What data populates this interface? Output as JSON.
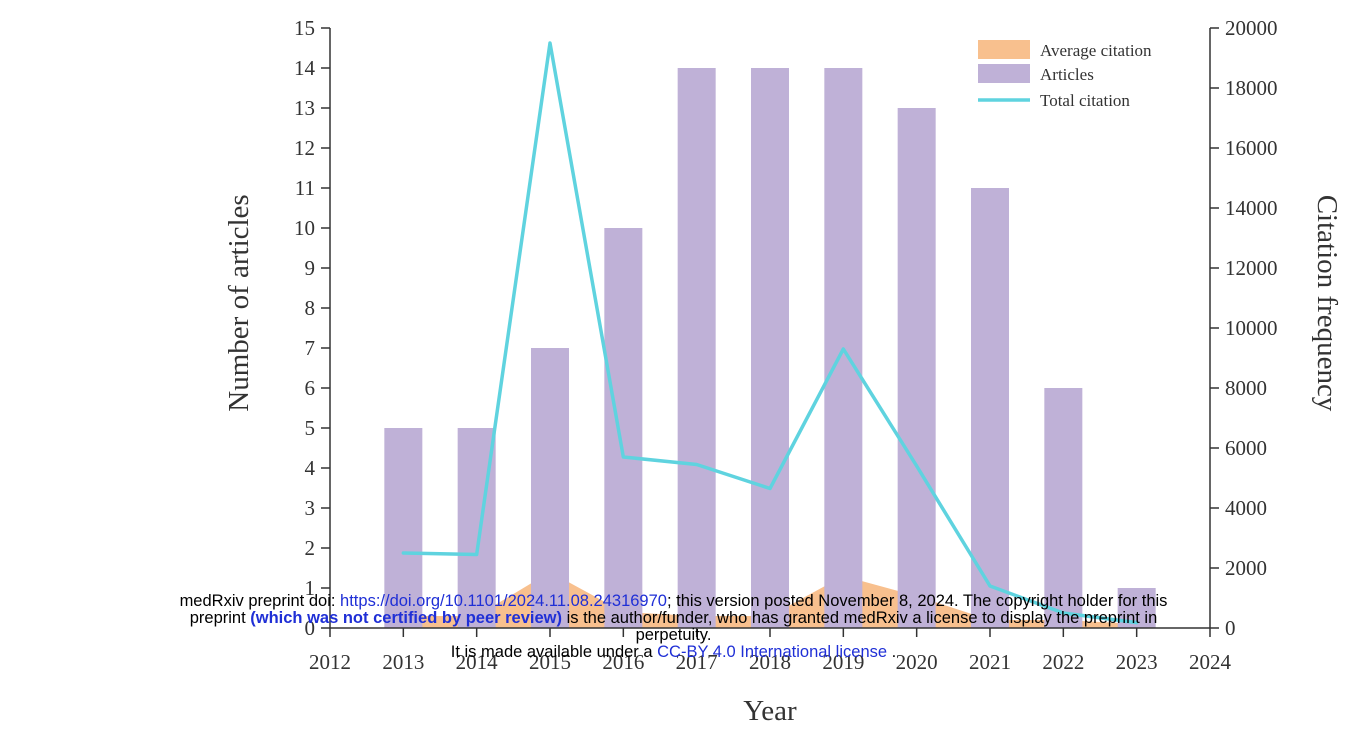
{
  "chart_data": {
    "type": "bar",
    "xlabel": "Year",
    "ylabel": "Number of articles",
    "y2label": "Citation frequency",
    "x_ticks": [
      "2012",
      "2013",
      "2014",
      "2015",
      "2016",
      "2017",
      "2018",
      "2019",
      "2020",
      "2021",
      "2022",
      "2023",
      "2024"
    ],
    "x": [
      2013,
      2014,
      2015,
      2016,
      2017,
      2018,
      2019,
      2020,
      2021,
      2022,
      2023
    ],
    "xlim": [
      2012,
      2024
    ],
    "ylim": [
      0,
      15
    ],
    "y_ticks": [
      "0",
      "1",
      "2",
      "3",
      "4",
      "5",
      "6",
      "7",
      "8",
      "9",
      "10",
      "11",
      "12",
      "13",
      "14",
      "15"
    ],
    "y2lim": [
      0,
      20000
    ],
    "y2_ticks": [
      "0",
      "2000",
      "4000",
      "6000",
      "8000",
      "10000",
      "12000",
      "14000",
      "16000",
      "18000",
      "20000"
    ],
    "legend_position": "top-right",
    "grid": false,
    "series": [
      {
        "name": "Average citation",
        "type": "area",
        "axis": "left",
        "color": "#f8c08e",
        "values": [
          0.3,
          0.3,
          1.4,
          0.4,
          0.3,
          0.3,
          1.3,
          0.8,
          0.2,
          0.2,
          0.1
        ]
      },
      {
        "name": "Articles",
        "type": "bar",
        "axis": "left",
        "color": "#bfb1d7",
        "values": [
          5,
          5,
          7,
          10,
          14,
          14,
          14,
          13,
          11,
          6,
          1
        ]
      },
      {
        "name": "Total citation",
        "type": "line",
        "axis": "right",
        "color": "#5fd3df",
        "values": [
          2500,
          2450,
          19500,
          5700,
          5450,
          4650,
          9300,
          5400,
          1400,
          500,
          180
        ]
      }
    ]
  },
  "notice": {
    "line1_prefix": "medRxiv preprint doi: ",
    "doi_link": "https://doi.org/10.1101/2024.11.08.24316970",
    "line1_suffix": "; this version posted November 8, 2024. The copyright holder for this",
    "line2_prefix": "preprint ",
    "line2_bold": "(which was not certified by peer review)",
    "line2_suffix": " is the author/funder, who has granted medRxiv a license to display the preprint in",
    "line3": "perpetuity.",
    "line4_prefix": "It is made available under a ",
    "license_link": "CC-BY 4.0 International license",
    "line4_suffix": " ."
  },
  "colors": {
    "axis": "#333333",
    "link": "#1f2fd6"
  }
}
